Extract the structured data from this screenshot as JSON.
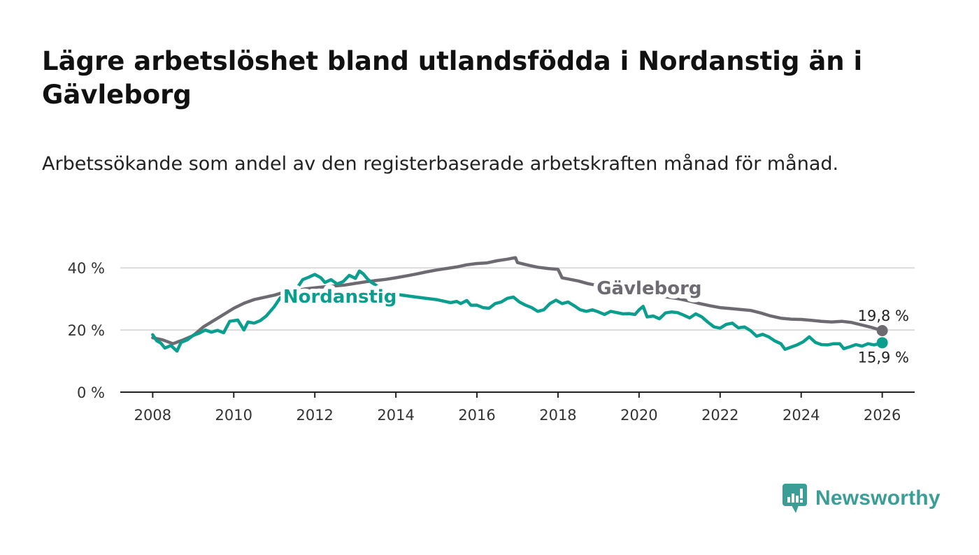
{
  "title": "Lägre arbetslöshet bland utlandsfödda i Nordanstig än i Gävleborg",
  "subtitle": "Arbetssökande som andel av den registerbaserade arbetskraften månad för månad.",
  "brand": {
    "name": "Newsworthy",
    "color": "#3a9e96",
    "icon": "bar-chart-speech-bubble-icon"
  },
  "colors": {
    "nordanstig": "#0a9e8e",
    "gavleborg": "#6e6a72",
    "grid": "#dcdcdc",
    "axis": "#222222"
  },
  "chart_data": {
    "type": "line",
    "title": "",
    "xlabel": "",
    "ylabel": "",
    "xlim": [
      2007.2,
      2026.8
    ],
    "ylim": [
      0,
      45
    ],
    "x_ticks": [
      {
        "value": 2008,
        "label": "2008"
      },
      {
        "value": 2010,
        "label": "2010"
      },
      {
        "value": 2012,
        "label": "2012"
      },
      {
        "value": 2014,
        "label": "2014"
      },
      {
        "value": 2016,
        "label": "2016"
      },
      {
        "value": 2018,
        "label": "2018"
      },
      {
        "value": 2020,
        "label": "2020"
      },
      {
        "value": 2022,
        "label": "2022"
      },
      {
        "value": 2024,
        "label": "2024"
      },
      {
        "value": 2026,
        "label": "2026"
      }
    ],
    "y_ticks": [
      {
        "value": 0,
        "label": "0 %"
      },
      {
        "value": 20,
        "label": "20 %"
      },
      {
        "value": 40,
        "label": "40 %"
      }
    ],
    "grid": true,
    "series": [
      {
        "name": "Gävleborg",
        "label_x": 2020.25,
        "label_y": 33.5,
        "end_label": "19,8 %",
        "end_label_position": "above",
        "points": [
          [
            2008.0,
            17.5
          ],
          [
            2008.25,
            16.8
          ],
          [
            2008.5,
            15.6
          ],
          [
            2008.75,
            16.8
          ],
          [
            2009.0,
            18.2
          ],
          [
            2009.25,
            21.0
          ],
          [
            2009.5,
            23.0
          ],
          [
            2009.75,
            25.0
          ],
          [
            2010.0,
            27.0
          ],
          [
            2010.25,
            28.6
          ],
          [
            2010.5,
            29.8
          ],
          [
            2010.75,
            30.5
          ],
          [
            2011.0,
            31.2
          ],
          [
            2011.25,
            32.2
          ],
          [
            2011.5,
            32.5
          ],
          [
            2011.75,
            33.2
          ],
          [
            2012.0,
            33.6
          ],
          [
            2012.25,
            33.9
          ],
          [
            2012.5,
            34.2
          ],
          [
            2012.75,
            34.5
          ],
          [
            2013.0,
            35.0
          ],
          [
            2013.25,
            35.5
          ],
          [
            2013.5,
            35.9
          ],
          [
            2013.75,
            36.3
          ],
          [
            2014.0,
            36.8
          ],
          [
            2014.25,
            37.4
          ],
          [
            2014.5,
            38.0
          ],
          [
            2014.75,
            38.7
          ],
          [
            2015.0,
            39.3
          ],
          [
            2015.25,
            39.8
          ],
          [
            2015.5,
            40.3
          ],
          [
            2015.75,
            41.0
          ],
          [
            2016.0,
            41.4
          ],
          [
            2016.25,
            41.6
          ],
          [
            2016.5,
            42.3
          ],
          [
            2016.75,
            42.8
          ],
          [
            2016.95,
            43.3
          ],
          [
            2017.0,
            41.7
          ],
          [
            2017.25,
            40.9
          ],
          [
            2017.5,
            40.2
          ],
          [
            2017.75,
            39.8
          ],
          [
            2018.0,
            39.5
          ],
          [
            2018.1,
            36.8
          ],
          [
            2018.5,
            35.8
          ],
          [
            2018.75,
            34.9
          ],
          [
            2019.0,
            34.3
          ],
          [
            2019.25,
            33.6
          ],
          [
            2019.5,
            33.0
          ],
          [
            2019.75,
            32.5
          ],
          [
            2020.0,
            32.0
          ],
          [
            2020.25,
            31.5
          ],
          [
            2020.5,
            31.0
          ],
          [
            2020.75,
            30.5
          ],
          [
            2021.0,
            30.0
          ],
          [
            2021.25,
            29.3
          ],
          [
            2021.5,
            28.5
          ],
          [
            2021.75,
            27.8
          ],
          [
            2022.0,
            27.2
          ],
          [
            2022.25,
            26.9
          ],
          [
            2022.5,
            26.6
          ],
          [
            2022.75,
            26.3
          ],
          [
            2023.0,
            25.5
          ],
          [
            2023.25,
            24.5
          ],
          [
            2023.5,
            23.8
          ],
          [
            2023.75,
            23.5
          ],
          [
            2024.0,
            23.4
          ],
          [
            2024.25,
            23.1
          ],
          [
            2024.5,
            22.8
          ],
          [
            2024.75,
            22.6
          ],
          [
            2025.0,
            22.8
          ],
          [
            2025.25,
            22.4
          ],
          [
            2025.5,
            21.6
          ],
          [
            2025.75,
            20.8
          ],
          [
            2026.0,
            19.8
          ]
        ]
      },
      {
        "name": "Nordanstig",
        "label_x": 2012.62,
        "label_y": 30.8,
        "end_label": "15,9 %",
        "end_label_position": "below",
        "points": [
          [
            2008.0,
            18.5
          ],
          [
            2008.1,
            16.5
          ],
          [
            2008.2,
            15.8
          ],
          [
            2008.3,
            14.2
          ],
          [
            2008.45,
            15.0
          ],
          [
            2008.6,
            13.2
          ],
          [
            2008.7,
            16.0
          ],
          [
            2008.85,
            16.8
          ],
          [
            2009.0,
            18.3
          ],
          [
            2009.15,
            19.0
          ],
          [
            2009.3,
            20.0
          ],
          [
            2009.45,
            19.3
          ],
          [
            2009.6,
            19.9
          ],
          [
            2009.75,
            19.1
          ],
          [
            2009.9,
            22.8
          ],
          [
            2010.1,
            23.2
          ],
          [
            2010.25,
            20.0
          ],
          [
            2010.35,
            22.6
          ],
          [
            2010.5,
            22.2
          ],
          [
            2010.65,
            23.0
          ],
          [
            2010.8,
            24.5
          ],
          [
            2011.0,
            27.5
          ],
          [
            2011.15,
            30.4
          ],
          [
            2011.3,
            31.0
          ],
          [
            2011.4,
            29.8
          ],
          [
            2011.55,
            33.2
          ],
          [
            2011.7,
            36.2
          ],
          [
            2011.85,
            37.0
          ],
          [
            2012.0,
            37.9
          ],
          [
            2012.15,
            36.8
          ],
          [
            2012.25,
            35.3
          ],
          [
            2012.4,
            36.2
          ],
          [
            2012.55,
            34.8
          ],
          [
            2012.7,
            35.6
          ],
          [
            2012.85,
            37.6
          ],
          [
            2013.0,
            36.6
          ],
          [
            2013.1,
            39.0
          ],
          [
            2013.2,
            38.0
          ],
          [
            2013.3,
            36.4
          ],
          [
            2013.4,
            35.3
          ],
          [
            2013.5,
            34.5
          ],
          [
            2013.65,
            33.2
          ],
          [
            2014.0,
            31.5
          ],
          [
            2014.5,
            30.6
          ],
          [
            2015.0,
            29.8
          ],
          [
            2015.35,
            28.8
          ],
          [
            2015.5,
            29.2
          ],
          [
            2015.6,
            28.5
          ],
          [
            2015.75,
            29.5
          ],
          [
            2015.85,
            28.0
          ],
          [
            2016.0,
            28.0
          ],
          [
            2016.15,
            27.2
          ],
          [
            2016.3,
            27.0
          ],
          [
            2016.45,
            28.5
          ],
          [
            2016.6,
            29.0
          ],
          [
            2016.75,
            30.2
          ],
          [
            2016.9,
            30.6
          ],
          [
            2017.05,
            29.0
          ],
          [
            2017.2,
            28.0
          ],
          [
            2017.35,
            27.2
          ],
          [
            2017.5,
            26.0
          ],
          [
            2017.65,
            26.5
          ],
          [
            2017.8,
            28.5
          ],
          [
            2017.95,
            29.6
          ],
          [
            2018.1,
            28.5
          ],
          [
            2018.25,
            29.0
          ],
          [
            2018.4,
            27.8
          ],
          [
            2018.55,
            26.5
          ],
          [
            2018.7,
            26.0
          ],
          [
            2018.85,
            26.5
          ],
          [
            2019.0,
            25.8
          ],
          [
            2019.15,
            25.0
          ],
          [
            2019.3,
            26.0
          ],
          [
            2019.45,
            25.6
          ],
          [
            2019.6,
            25.2
          ],
          [
            2019.75,
            25.3
          ],
          [
            2019.9,
            25.0
          ],
          [
            2020.0,
            26.5
          ],
          [
            2020.1,
            27.6
          ],
          [
            2020.2,
            24.2
          ],
          [
            2020.35,
            24.5
          ],
          [
            2020.5,
            23.6
          ],
          [
            2020.65,
            25.5
          ],
          [
            2020.8,
            25.8
          ],
          [
            2020.95,
            25.6
          ],
          [
            2021.1,
            24.8
          ],
          [
            2021.25,
            23.9
          ],
          [
            2021.4,
            25.2
          ],
          [
            2021.55,
            24.2
          ],
          [
            2021.7,
            22.5
          ],
          [
            2021.85,
            21.0
          ],
          [
            2022.0,
            20.6
          ],
          [
            2022.15,
            21.8
          ],
          [
            2022.3,
            22.2
          ],
          [
            2022.45,
            20.7
          ],
          [
            2022.6,
            21.0
          ],
          [
            2022.75,
            19.8
          ],
          [
            2022.9,
            18.0
          ],
          [
            2023.05,
            18.6
          ],
          [
            2023.2,
            17.8
          ],
          [
            2023.35,
            16.5
          ],
          [
            2023.5,
            15.6
          ],
          [
            2023.6,
            13.8
          ],
          [
            2023.75,
            14.5
          ],
          [
            2023.9,
            15.2
          ],
          [
            2024.05,
            16.2
          ],
          [
            2024.2,
            17.8
          ],
          [
            2024.35,
            16.0
          ],
          [
            2024.5,
            15.3
          ],
          [
            2024.65,
            15.2
          ],
          [
            2024.8,
            15.6
          ],
          [
            2024.95,
            15.6
          ],
          [
            2025.05,
            14.0
          ],
          [
            2025.2,
            14.6
          ],
          [
            2025.35,
            15.3
          ],
          [
            2025.5,
            14.8
          ],
          [
            2025.65,
            15.6
          ],
          [
            2025.8,
            15.2
          ],
          [
            2026.0,
            15.9
          ]
        ]
      }
    ]
  }
}
